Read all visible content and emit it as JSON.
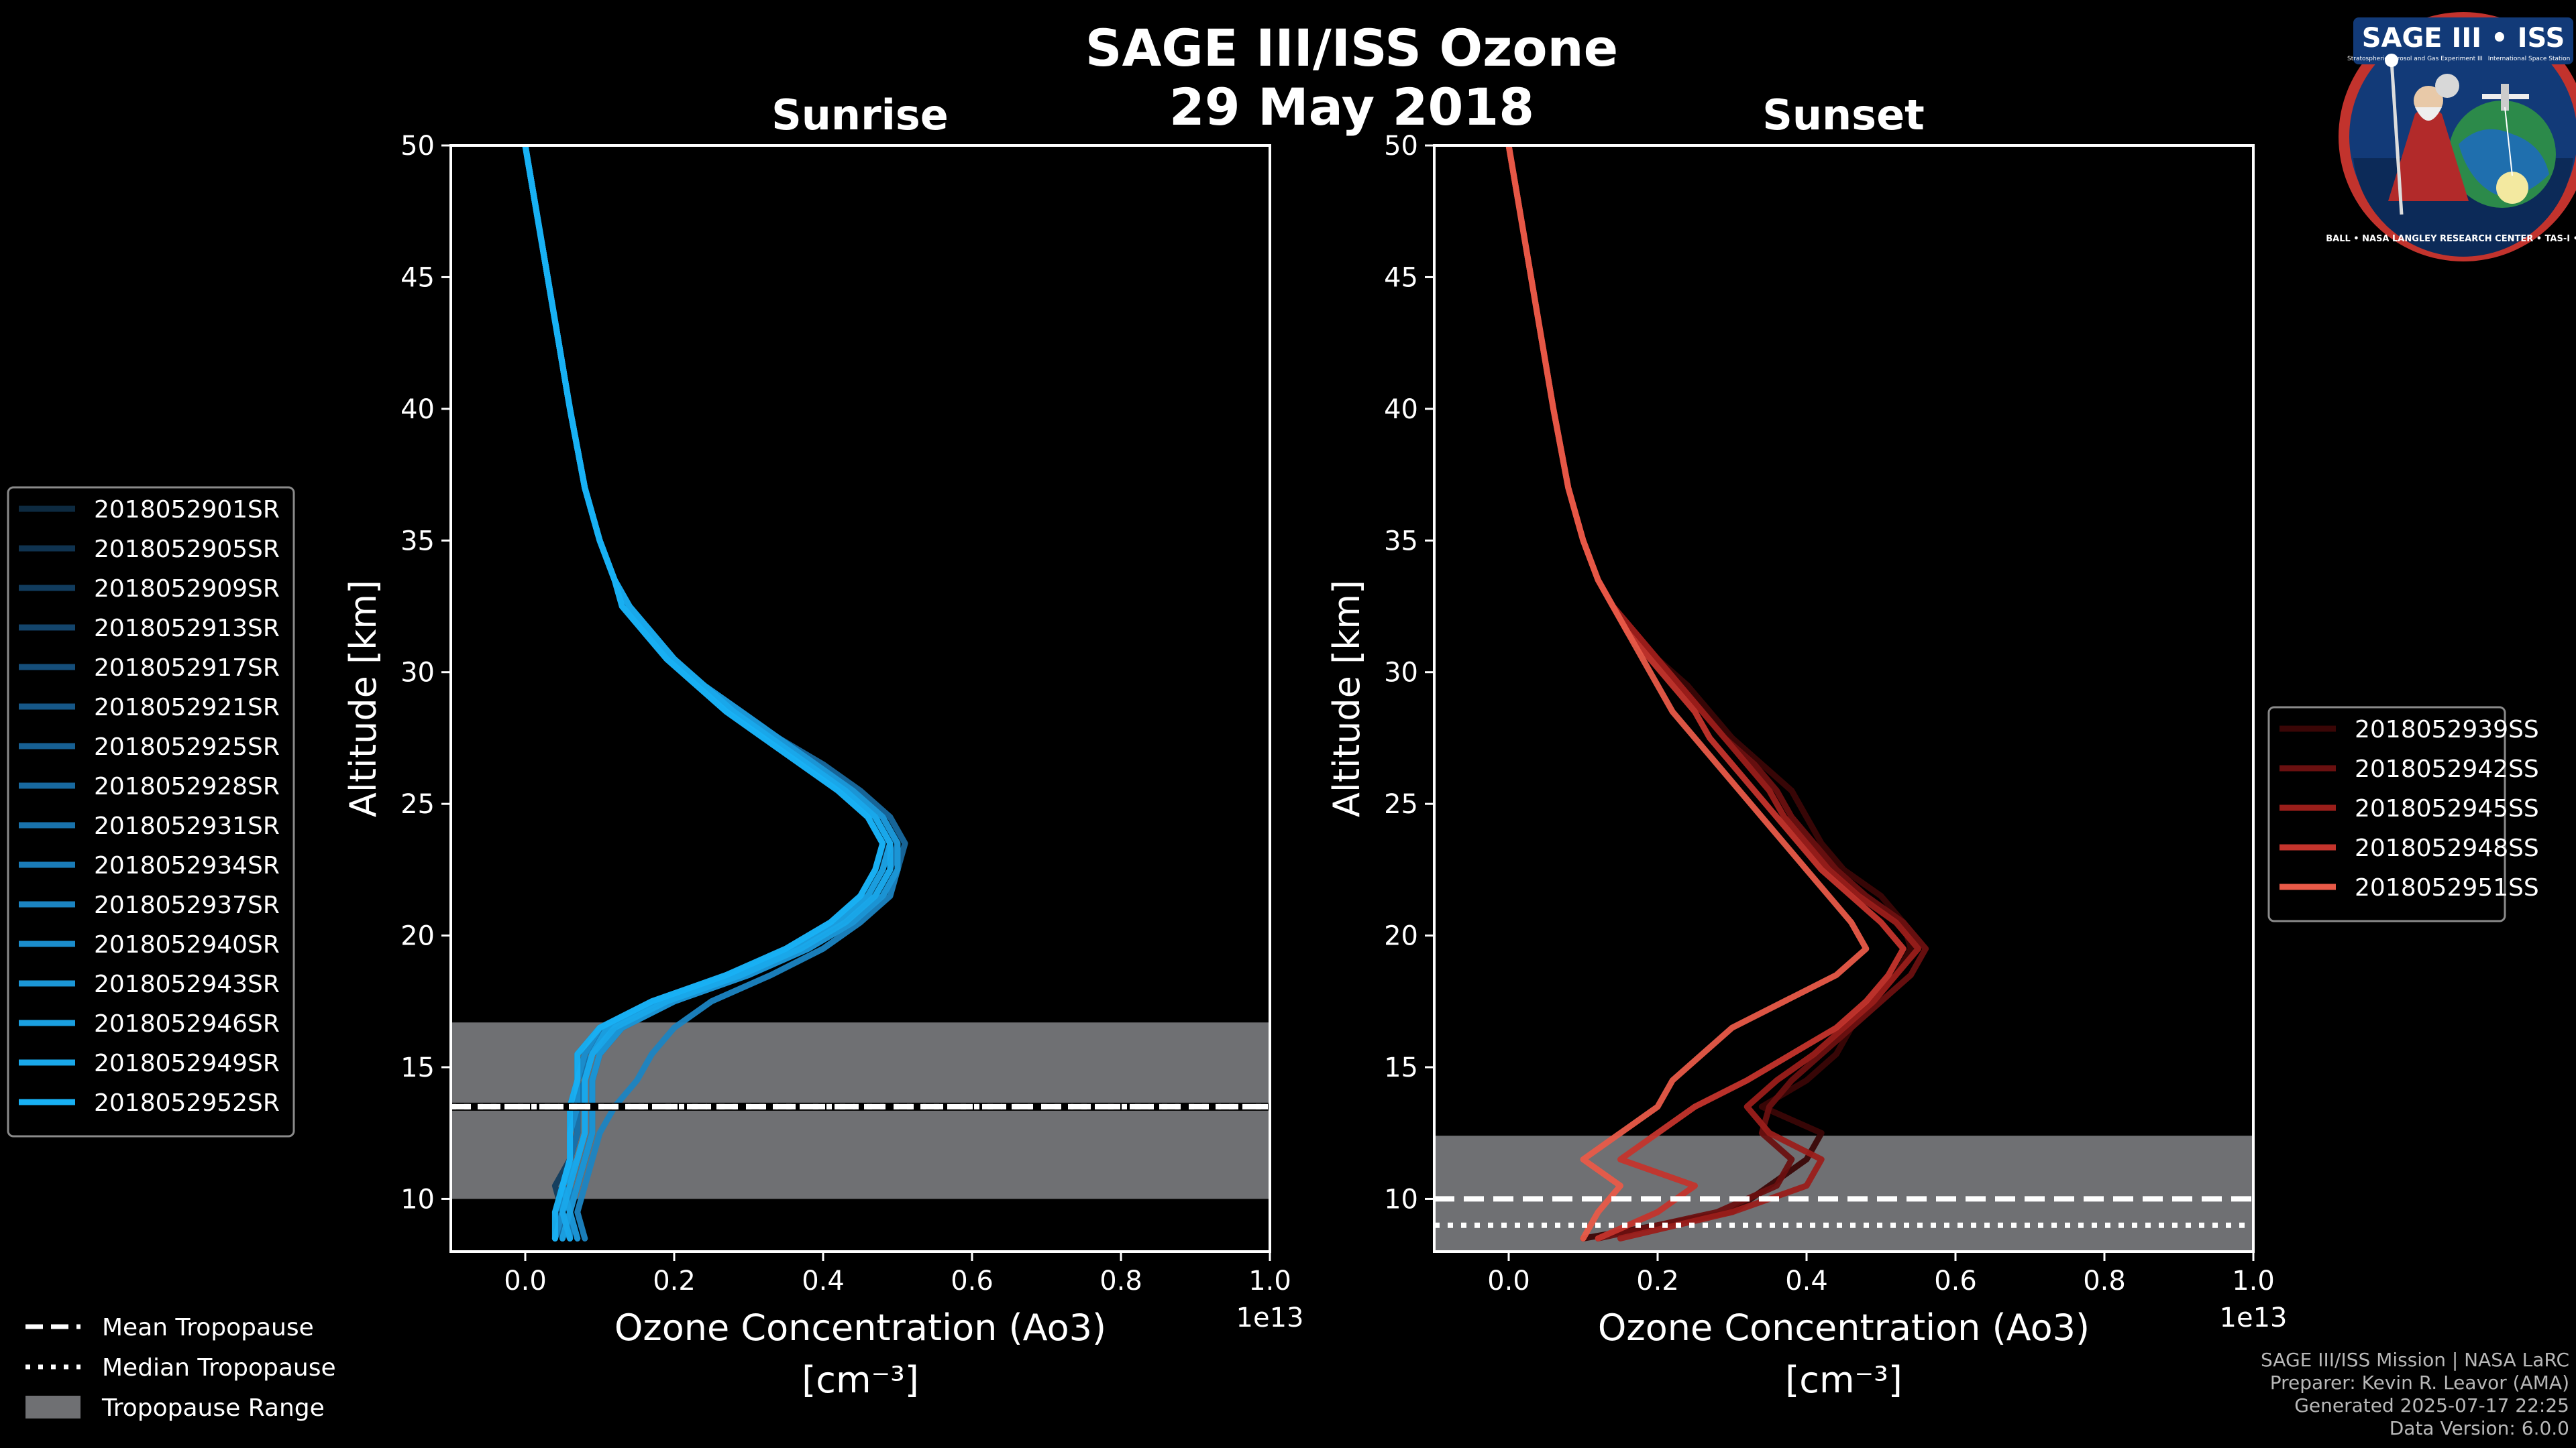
{
  "header": {
    "title_line1": "SAGE III/ISS Ozone",
    "title_line2": "29 May 2018"
  },
  "chart_data": [
    {
      "type": "line",
      "panel": "sunrise",
      "title": "Sunrise",
      "xlabel": "Ozone Concentration (Ao3)",
      "xlabel_units": "[cm⁻³]",
      "xscale_label": "1e13",
      "ylabel": "Altitude [km]",
      "xlim": [
        -0.1,
        1.0
      ],
      "ylim": [
        8,
        50
      ],
      "xticks": [
        0.0,
        0.2,
        0.4,
        0.6,
        0.8,
        1.0
      ],
      "xtick_labels": [
        "0.0",
        "0.2",
        "0.4",
        "0.6",
        "0.8",
        "1.0"
      ],
      "yticks": [
        10,
        15,
        20,
        25,
        30,
        35,
        40,
        45,
        50
      ],
      "ytick_labels": [
        "10",
        "15",
        "20",
        "25",
        "30",
        "35",
        "40",
        "45",
        "50"
      ],
      "tropopause": {
        "mean": 13.5,
        "median": 13.5,
        "range": [
          10.0,
          16.7
        ]
      },
      "altitudes": [
        8.5,
        9.5,
        10.5,
        11.5,
        12.5,
        13.5,
        14.5,
        15.5,
        16.5,
        17.5,
        18.5,
        19.5,
        20.5,
        21.5,
        22.5,
        23.5,
        24.5,
        25.5,
        26.5,
        27.5,
        28.5,
        29.5,
        30.5,
        31.5,
        32.5,
        33.5,
        35,
        37,
        40,
        45,
        50
      ],
      "series": [
        {
          "name": "2018052901SR",
          "color": "#0d2a40",
          "values": [
            0.05,
            0.04,
            0.05,
            0.06,
            0.07,
            0.07,
            0.07,
            0.08,
            0.11,
            0.18,
            0.28,
            0.36,
            0.42,
            0.46,
            0.48,
            0.48,
            0.46,
            0.42,
            0.37,
            0.32,
            0.27,
            0.23,
            0.19,
            0.16,
            0.14,
            0.12,
            0.1,
            0.08,
            0.06,
            0.03,
            0.0
          ]
        },
        {
          "name": "2018052905SR",
          "color": "#0f3350",
          "values": [
            0.06,
            0.05,
            0.06,
            0.07,
            0.08,
            0.08,
            0.08,
            0.09,
            0.12,
            0.19,
            0.29,
            0.37,
            0.43,
            0.47,
            0.49,
            0.49,
            0.47,
            0.43,
            0.38,
            0.33,
            0.28,
            0.24,
            0.2,
            0.17,
            0.14,
            0.12,
            0.1,
            0.08,
            0.06,
            0.03,
            0.0
          ]
        },
        {
          "name": "2018052909SR",
          "color": "#113c5e",
          "values": [
            0.04,
            0.05,
            0.04,
            0.06,
            0.06,
            0.06,
            0.07,
            0.07,
            0.1,
            0.17,
            0.27,
            0.35,
            0.41,
            0.45,
            0.47,
            0.48,
            0.46,
            0.42,
            0.37,
            0.32,
            0.27,
            0.23,
            0.19,
            0.16,
            0.13,
            0.12,
            0.1,
            0.08,
            0.06,
            0.03,
            0.0
          ]
        },
        {
          "name": "2018052913SR",
          "color": "#13456c",
          "values": [
            0.07,
            0.06,
            0.07,
            0.08,
            0.09,
            0.09,
            0.09,
            0.1,
            0.13,
            0.2,
            0.3,
            0.38,
            0.44,
            0.48,
            0.5,
            0.5,
            0.48,
            0.44,
            0.39,
            0.34,
            0.29,
            0.24,
            0.2,
            0.17,
            0.14,
            0.12,
            0.1,
            0.08,
            0.06,
            0.03,
            0.0
          ]
        },
        {
          "name": "2018052917SR",
          "color": "#154e7a",
          "values": [
            0.05,
            0.06,
            0.05,
            0.06,
            0.07,
            0.07,
            0.08,
            0.08,
            0.11,
            0.18,
            0.28,
            0.36,
            0.42,
            0.46,
            0.48,
            0.49,
            0.47,
            0.43,
            0.38,
            0.33,
            0.28,
            0.23,
            0.19,
            0.16,
            0.14,
            0.12,
            0.1,
            0.08,
            0.06,
            0.03,
            0.0
          ]
        },
        {
          "name": "2018052921SR",
          "color": "#165787",
          "values": [
            0.06,
            0.04,
            0.06,
            0.07,
            0.08,
            0.08,
            0.08,
            0.09,
            0.12,
            0.19,
            0.29,
            0.37,
            0.43,
            0.47,
            0.49,
            0.49,
            0.47,
            0.43,
            0.38,
            0.33,
            0.28,
            0.24,
            0.2,
            0.17,
            0.14,
            0.12,
            0.1,
            0.08,
            0.06,
            0.03,
            0.0
          ]
        },
        {
          "name": "2018052925SR",
          "color": "#176093",
          "values": [
            0.04,
            0.05,
            0.05,
            0.06,
            0.06,
            0.07,
            0.07,
            0.08,
            0.1,
            0.17,
            0.27,
            0.35,
            0.41,
            0.45,
            0.47,
            0.48,
            0.46,
            0.42,
            0.37,
            0.32,
            0.27,
            0.23,
            0.19,
            0.16,
            0.13,
            0.12,
            0.1,
            0.08,
            0.06,
            0.03,
            0.0
          ]
        },
        {
          "name": "2018052928SR",
          "color": "#18699f",
          "values": [
            0.07,
            0.06,
            0.07,
            0.08,
            0.09,
            0.09,
            0.09,
            0.1,
            0.13,
            0.2,
            0.3,
            0.38,
            0.44,
            0.48,
            0.5,
            0.51,
            0.49,
            0.45,
            0.4,
            0.34,
            0.29,
            0.24,
            0.2,
            0.17,
            0.14,
            0.12,
            0.1,
            0.08,
            0.06,
            0.03,
            0.0
          ]
        },
        {
          "name": "2018052931SR",
          "color": "#1972ab",
          "values": [
            0.05,
            0.05,
            0.05,
            0.06,
            0.07,
            0.07,
            0.08,
            0.08,
            0.11,
            0.18,
            0.28,
            0.36,
            0.42,
            0.46,
            0.48,
            0.49,
            0.47,
            0.43,
            0.38,
            0.33,
            0.28,
            0.23,
            0.19,
            0.16,
            0.14,
            0.12,
            0.1,
            0.08,
            0.06,
            0.03,
            0.0
          ]
        },
        {
          "name": "2018052934SR",
          "color": "#1a7bb7",
          "values": [
            0.06,
            0.06,
            0.06,
            0.07,
            0.08,
            0.08,
            0.08,
            0.09,
            0.12,
            0.19,
            0.29,
            0.37,
            0.43,
            0.47,
            0.49,
            0.5,
            0.48,
            0.44,
            0.39,
            0.34,
            0.29,
            0.24,
            0.2,
            0.17,
            0.14,
            0.12,
            0.1,
            0.08,
            0.06,
            0.03,
            0.0
          ]
        },
        {
          "name": "2018052937SR",
          "color": "#1b84c2",
          "values": [
            0.08,
            0.07,
            0.08,
            0.09,
            0.1,
            0.12,
            0.15,
            0.17,
            0.2,
            0.25,
            0.33,
            0.4,
            0.45,
            0.49,
            0.5,
            0.5,
            0.48,
            0.44,
            0.39,
            0.34,
            0.29,
            0.24,
            0.2,
            0.17,
            0.14,
            0.12,
            0.1,
            0.08,
            0.06,
            0.03,
            0.0
          ]
        },
        {
          "name": "2018052940SR",
          "color": "#1b8dcc",
          "values": [
            0.04,
            0.05,
            0.05,
            0.06,
            0.06,
            0.07,
            0.07,
            0.08,
            0.1,
            0.17,
            0.27,
            0.35,
            0.41,
            0.45,
            0.47,
            0.48,
            0.46,
            0.42,
            0.37,
            0.32,
            0.27,
            0.23,
            0.19,
            0.16,
            0.13,
            0.12,
            0.1,
            0.08,
            0.06,
            0.03,
            0.0
          ]
        },
        {
          "name": "2018052943SR",
          "color": "#1b96d6",
          "values": [
            0.07,
            0.06,
            0.07,
            0.08,
            0.09,
            0.09,
            0.09,
            0.1,
            0.13,
            0.2,
            0.3,
            0.38,
            0.44,
            0.48,
            0.5,
            0.5,
            0.48,
            0.44,
            0.39,
            0.34,
            0.29,
            0.24,
            0.2,
            0.17,
            0.14,
            0.12,
            0.1,
            0.08,
            0.06,
            0.03,
            0.0
          ]
        },
        {
          "name": "2018052946SR",
          "color": "#1a9fe0",
          "values": [
            0.05,
            0.06,
            0.05,
            0.07,
            0.08,
            0.08,
            0.08,
            0.09,
            0.11,
            0.18,
            0.28,
            0.36,
            0.42,
            0.46,
            0.48,
            0.49,
            0.47,
            0.43,
            0.38,
            0.33,
            0.28,
            0.24,
            0.2,
            0.17,
            0.14,
            0.12,
            0.1,
            0.08,
            0.06,
            0.03,
            0.0
          ]
        },
        {
          "name": "2018052949SR",
          "color": "#19a8ea",
          "values": [
            0.06,
            0.05,
            0.06,
            0.07,
            0.08,
            0.08,
            0.08,
            0.09,
            0.12,
            0.19,
            0.29,
            0.37,
            0.43,
            0.47,
            0.49,
            0.49,
            0.47,
            0.43,
            0.38,
            0.33,
            0.28,
            0.24,
            0.2,
            0.17,
            0.14,
            0.12,
            0.1,
            0.08,
            0.06,
            0.03,
            0.0
          ]
        },
        {
          "name": "2018052952SR",
          "color": "#18b1f4",
          "values": [
            0.04,
            0.04,
            0.05,
            0.06,
            0.06,
            0.06,
            0.07,
            0.07,
            0.1,
            0.17,
            0.27,
            0.35,
            0.41,
            0.45,
            0.47,
            0.48,
            0.46,
            0.42,
            0.37,
            0.32,
            0.27,
            0.23,
            0.19,
            0.16,
            0.13,
            0.12,
            0.1,
            0.08,
            0.06,
            0.03,
            0.0
          ]
        }
      ]
    },
    {
      "type": "line",
      "panel": "sunset",
      "title": "Sunset",
      "xlabel": "Ozone Concentration (Ao3)",
      "xlabel_units": "[cm⁻³]",
      "xscale_label": "1e13",
      "ylabel": "Altitude [km]",
      "xlim": [
        -0.1,
        1.0
      ],
      "ylim": [
        8,
        50
      ],
      "xticks": [
        0.0,
        0.2,
        0.4,
        0.6,
        0.8,
        1.0
      ],
      "xtick_labels": [
        "0.0",
        "0.2",
        "0.4",
        "0.6",
        "0.8",
        "1.0"
      ],
      "yticks": [
        10,
        15,
        20,
        25,
        30,
        35,
        40,
        45,
        50
      ],
      "ytick_labels": [
        "10",
        "15",
        "20",
        "25",
        "30",
        "35",
        "40",
        "45",
        "50"
      ],
      "tropopause": {
        "mean": 10.0,
        "median": 9.0,
        "range": [
          8.0,
          12.4
        ]
      },
      "altitudes": [
        8.5,
        9.5,
        10.5,
        11.5,
        12.5,
        13.5,
        14.5,
        15.5,
        16.5,
        17.5,
        18.5,
        19.5,
        20.5,
        21.5,
        22.5,
        23.5,
        24.5,
        25.5,
        26.5,
        27.5,
        28.5,
        29.5,
        30.5,
        31.5,
        32.5,
        33.5,
        35,
        37,
        40,
        45,
        50
      ],
      "series": [
        {
          "name": "2018052939SS",
          "color": "#3a0606",
          "values": [
            0.1,
            0.3,
            0.35,
            0.4,
            0.42,
            0.34,
            0.4,
            0.44,
            0.46,
            0.49,
            0.52,
            0.54,
            0.53,
            0.5,
            0.45,
            0.42,
            0.4,
            0.38,
            0.34,
            0.3,
            0.27,
            0.24,
            0.2,
            0.17,
            0.14,
            0.12,
            0.1,
            0.08,
            0.06,
            0.03,
            0.0
          ]
        },
        {
          "name": "2018052942SS",
          "color": "#6a1010",
          "values": [
            0.12,
            0.28,
            0.36,
            0.38,
            0.34,
            0.35,
            0.38,
            0.42,
            0.46,
            0.5,
            0.54,
            0.56,
            0.53,
            0.48,
            0.44,
            0.41,
            0.38,
            0.36,
            0.33,
            0.29,
            0.26,
            0.23,
            0.2,
            0.17,
            0.14,
            0.12,
            0.1,
            0.08,
            0.06,
            0.03,
            0.0
          ]
        },
        {
          "name": "2018052945SS",
          "color": "#9a1e1a",
          "values": [
            0.15,
            0.3,
            0.4,
            0.42,
            0.35,
            0.32,
            0.36,
            0.41,
            0.45,
            0.49,
            0.52,
            0.55,
            0.52,
            0.47,
            0.43,
            0.4,
            0.37,
            0.35,
            0.32,
            0.29,
            0.26,
            0.23,
            0.2,
            0.17,
            0.14,
            0.12,
            0.1,
            0.08,
            0.06,
            0.03,
            0.0
          ]
        },
        {
          "name": "2018052948SS",
          "color": "#c4342c",
          "values": [
            0.12,
            0.2,
            0.25,
            0.15,
            0.2,
            0.25,
            0.32,
            0.38,
            0.44,
            0.48,
            0.51,
            0.53,
            0.5,
            0.46,
            0.42,
            0.39,
            0.36,
            0.33,
            0.3,
            0.27,
            0.25,
            0.22,
            0.19,
            0.16,
            0.14,
            0.12,
            0.1,
            0.08,
            0.06,
            0.03,
            0.0
          ]
        },
        {
          "name": "2018052951SS",
          "color": "#e85a48",
          "values": [
            0.1,
            0.12,
            0.15,
            0.1,
            0.15,
            0.2,
            0.22,
            0.26,
            0.3,
            0.37,
            0.44,
            0.48,
            0.46,
            0.43,
            0.4,
            0.37,
            0.34,
            0.31,
            0.28,
            0.25,
            0.22,
            0.2,
            0.18,
            0.16,
            0.14,
            0.12,
            0.1,
            0.08,
            0.06,
            0.03,
            0.0
          ]
        }
      ]
    }
  ],
  "tropopause_legend": {
    "mean": "Mean Tropopause",
    "median": "Median Tropopause",
    "range": "Tropopause Range"
  },
  "credits": {
    "line1": "SAGE III/ISS Mission | NASA LaRC",
    "line2": "Preparer: Kevin R. Leavor (AMA)",
    "line3": "Generated 2025-07-17 22:25",
    "line4": "Data Version: 6.0.0"
  },
  "logo": {
    "title": "SAGE III • ISS",
    "subtitle": "Stratospheric Aerosol and Gas Experiment III",
    "subtitle2": "International Space Station",
    "ring": "BALL • NASA LANGLEY RESEARCH CENTER • TAS-I • ESA"
  },
  "colors": {
    "background": "#000000",
    "axes": "#ffffff",
    "tropopause_band": "#6f7073",
    "legend_bg": "#000000",
    "legend_border": "#8a8a8a"
  }
}
